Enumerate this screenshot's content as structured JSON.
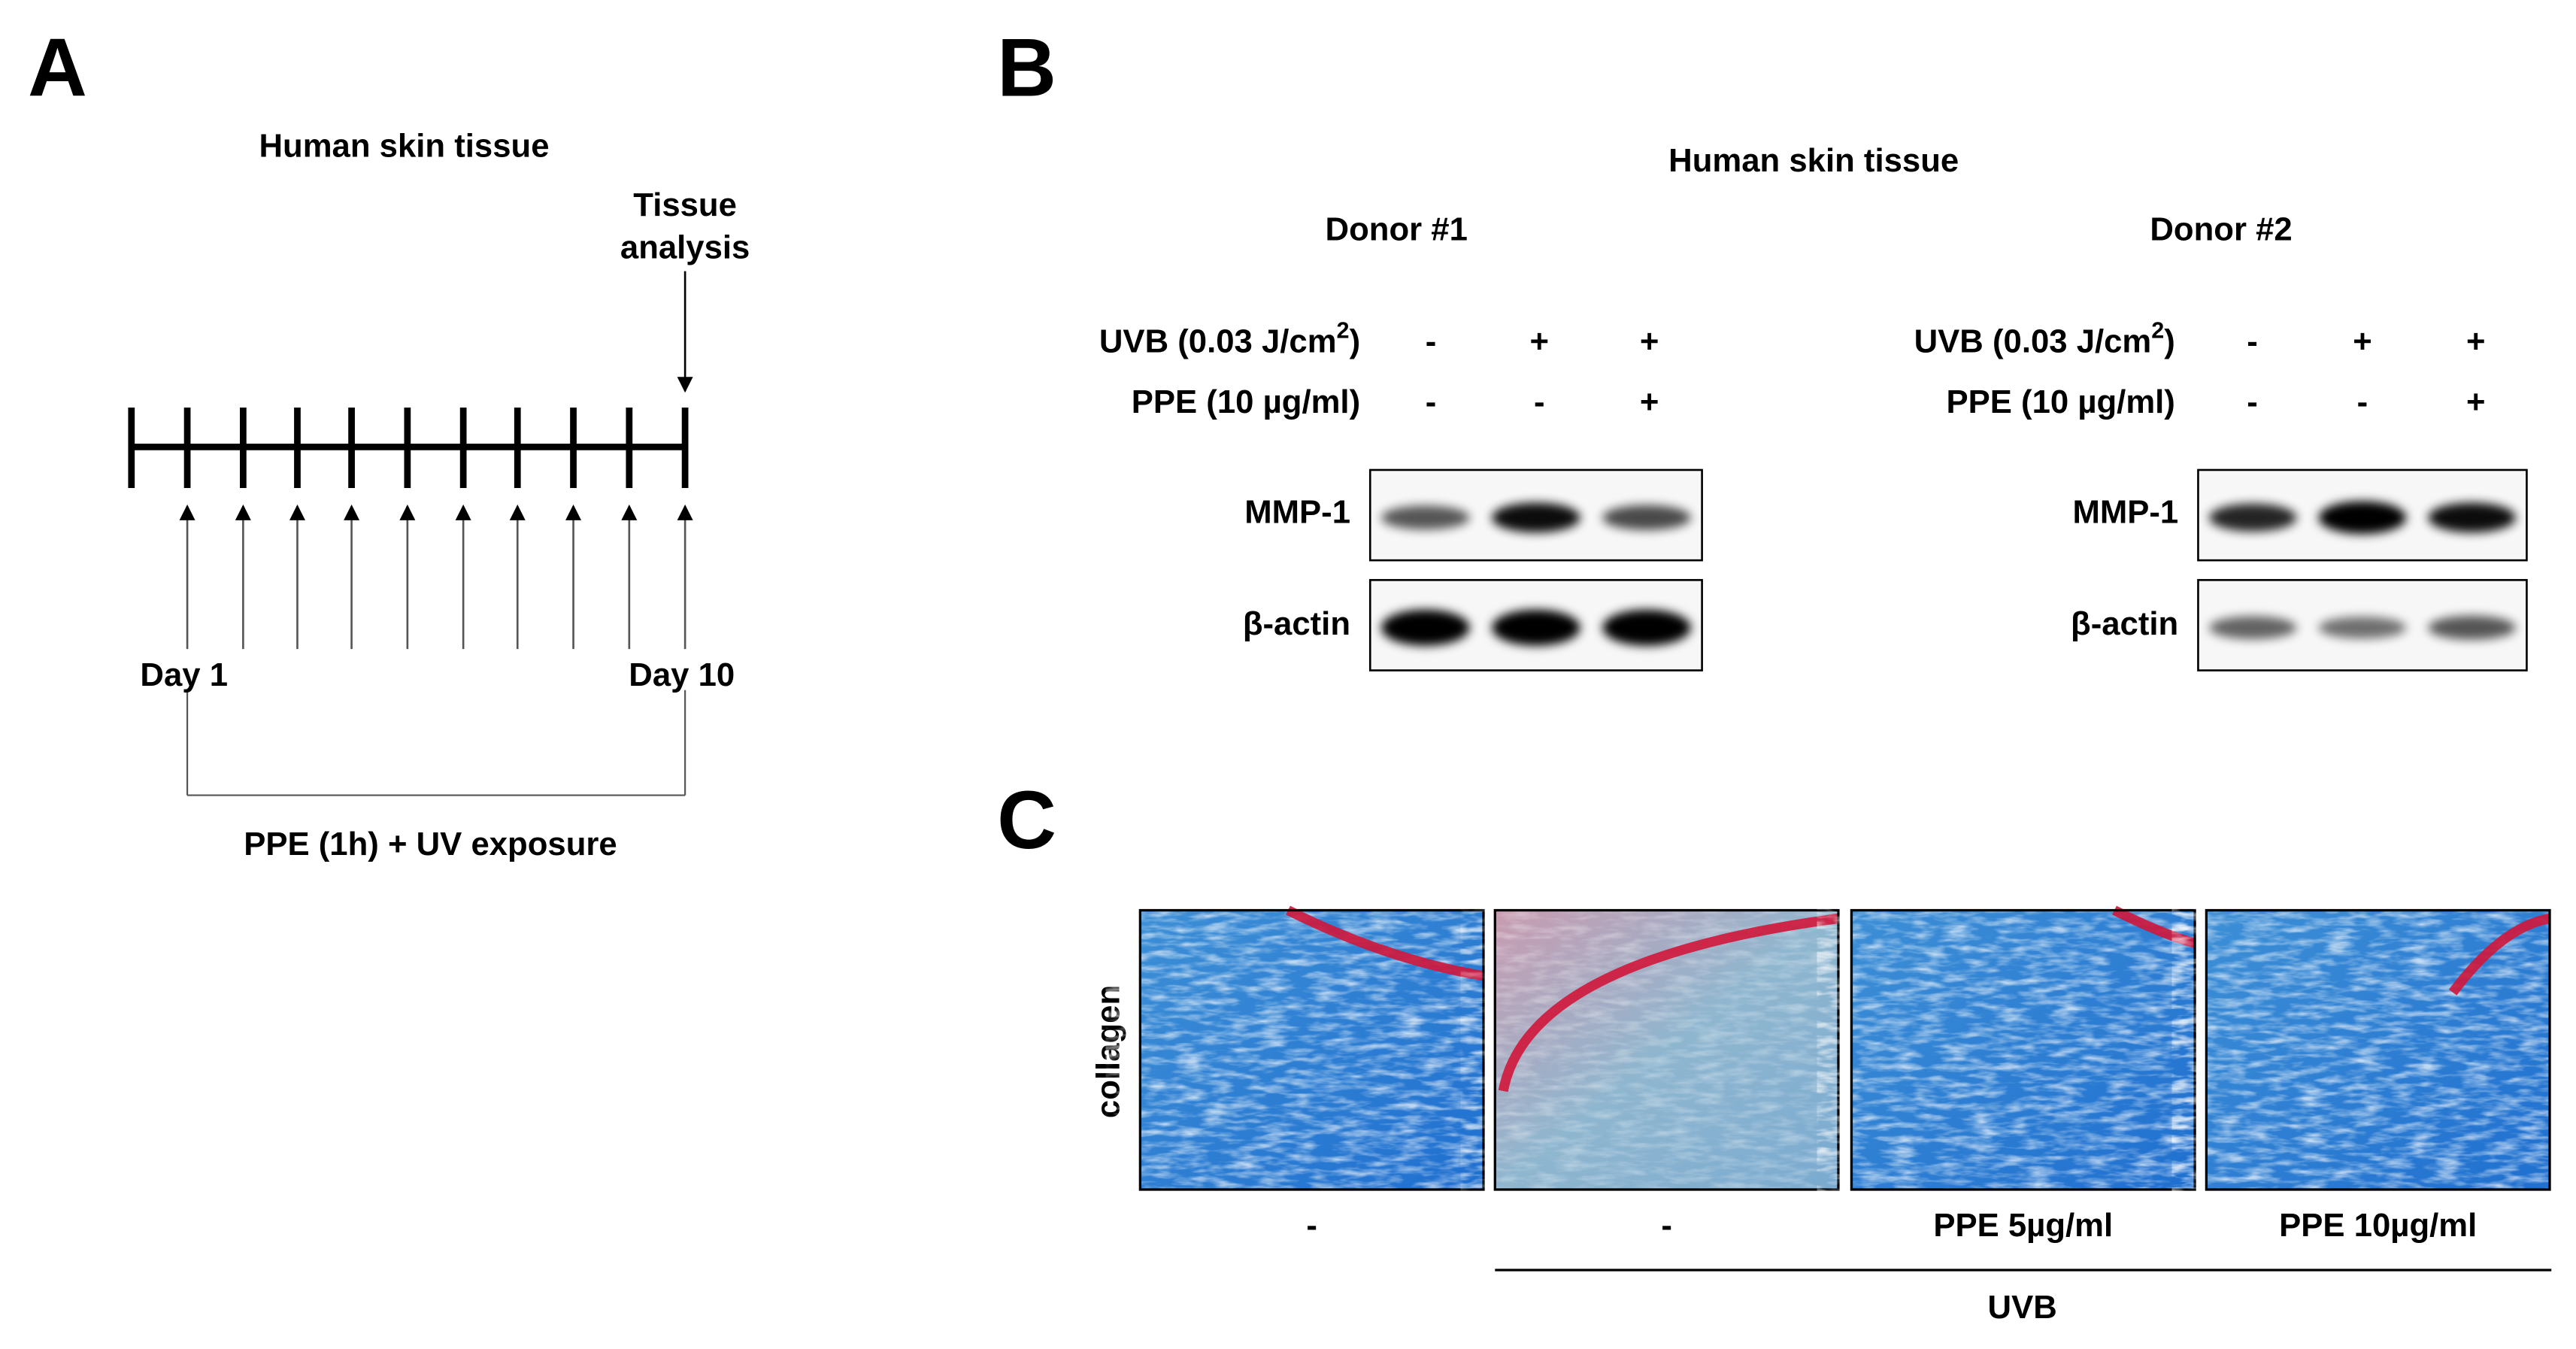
{
  "panel_a": {
    "label": "A",
    "title": "Human skin tissue",
    "analysis_label": [
      "Tissue",
      "analysis"
    ],
    "start_label": "Day 1",
    "end_label": "Day 10",
    "treatment_label": "PPE (1h) + UV exposure"
  },
  "panel_b": {
    "label": "B",
    "title": "Human skin tissue",
    "donors": [
      {
        "title": "Donor #1"
      },
      {
        "title": "Donor #2"
      }
    ],
    "uvb_label": {
      "text": "UVB (0.03 J/cm",
      "sup": "2",
      "close": ")"
    },
    "ppe_label": "PPE (10 µg/ml)",
    "uvb_signs": [
      "-",
      "+",
      "+"
    ],
    "ppe_signs": [
      "-",
      "-",
      "+"
    ],
    "blot_labels": [
      "MMP-1",
      "β-actin"
    ]
  },
  "panel_c": {
    "label": "C",
    "row_label": "collagen",
    "column_labels": [
      "-",
      "-",
      "PPE 5µg/ml",
      "PPE 10µg/ml"
    ],
    "group_label": "UVB"
  }
}
